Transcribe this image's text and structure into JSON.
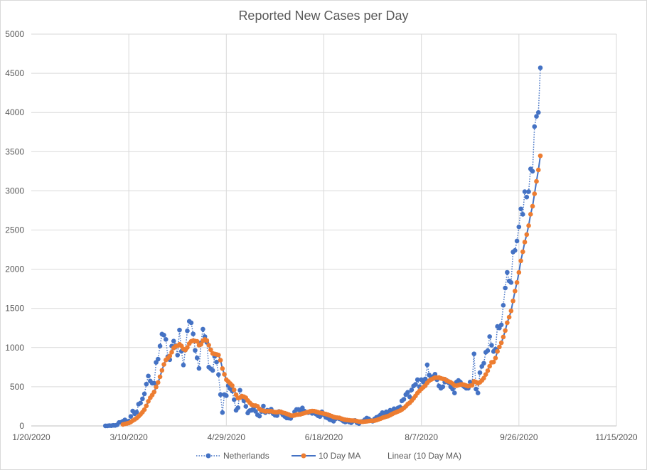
{
  "chart_data": {
    "type": "line",
    "title": "Reported New Cases per Day",
    "xlabel": "",
    "ylabel": "",
    "ylim": [
      0,
      5000
    ],
    "yticks": [
      0,
      500,
      1000,
      1500,
      2000,
      2500,
      3000,
      3500,
      4000,
      4500,
      5000
    ],
    "xticks": [
      "1/20/2020",
      "3/10/2020",
      "4/29/2020",
      "6/18/2020",
      "8/7/2020",
      "9/26/2020",
      "11/15/2020"
    ],
    "x_start_date": "2020-01-20",
    "x_end_date": "2020-11-15",
    "grid": true,
    "legend_position": "bottom",
    "series_start_date": "2020-02-27",
    "series": [
      {
        "name": "Netherlands",
        "style": "dotted",
        "color": "#4472c4",
        "marker_color": "#4472c4",
        "values": [
          1,
          1,
          4,
          3,
          7,
          6,
          14,
          44,
          46,
          60,
          77,
          56,
          61,
          121,
          190,
          155,
          176,
          278,
          292,
          346,
          409,
          534,
          637,
          573,
          545,
          545,
          811,
          852,
          1019,
          1172,
          1159,
          1104,
          884,
          845,
          1019,
          1083,
          1026,
          904,
          1224,
          952,
          777,
          969,
          1213,
          1335,
          1316,
          1174,
          964,
          868,
          734,
          1061,
          1235,
          1140,
          1066,
          750,
          729,
          708,
          887,
          815,
          655,
          400,
          171,
          400,
          386,
          514,
          475,
          445,
          335,
          199,
          232,
          455,
          363,
          319,
          250,
          165,
          196,
          199,
          232,
          186,
          141,
          125,
          183,
          254,
          170,
          200,
          180,
          214,
          156,
          136,
          132,
          184,
          170,
          140,
          120,
          101,
          100,
          96,
          130,
          180,
          210,
          210,
          190,
          230,
          190,
          175,
          170,
          181,
          160,
          170,
          150,
          130,
          120,
          180,
          140,
          110,
          100,
          80,
          75,
          60,
          90,
          100,
          90,
          80,
          60,
          50,
          70,
          50,
          40,
          60,
          70,
          40,
          30,
          55,
          60,
          80,
          100,
          90,
          70,
          60,
          90,
          110,
          120,
          140,
          170,
          160,
          180,
          150,
          200,
          190,
          220,
          210,
          230,
          240,
          320,
          340,
          400,
          430,
          370,
          460,
          510,
          530,
          590,
          500,
          590,
          560,
          600,
          780,
          650,
          610,
          630,
          660,
          590,
          510,
          480,
          500,
          560,
          580,
          550,
          500,
          470,
          420,
          560,
          580,
          560,
          520,
          500,
          480,
          480,
          560,
          530,
          920,
          470,
          420,
          680,
          760,
          800,
          940,
          960,
          1140,
          1030,
          950,
          980,
          1270,
          1250,
          1290,
          1540,
          1760,
          1960,
          1850,
          1830,
          2220,
          2240,
          2360,
          2540,
          2770,
          2700,
          2990,
          2920,
          2990,
          3280,
          3250,
          3820,
          3950,
          4000,
          4570
        ]
      },
      {
        "name": "10 Day MA",
        "style": "solid",
        "color": "#4472c4",
        "marker_color": "#ed7d31",
        "window": 10,
        "source": "Netherlands"
      },
      {
        "name": "Linear (10 Day MA)",
        "style": "none",
        "color": "#ed7d31"
      }
    ]
  }
}
